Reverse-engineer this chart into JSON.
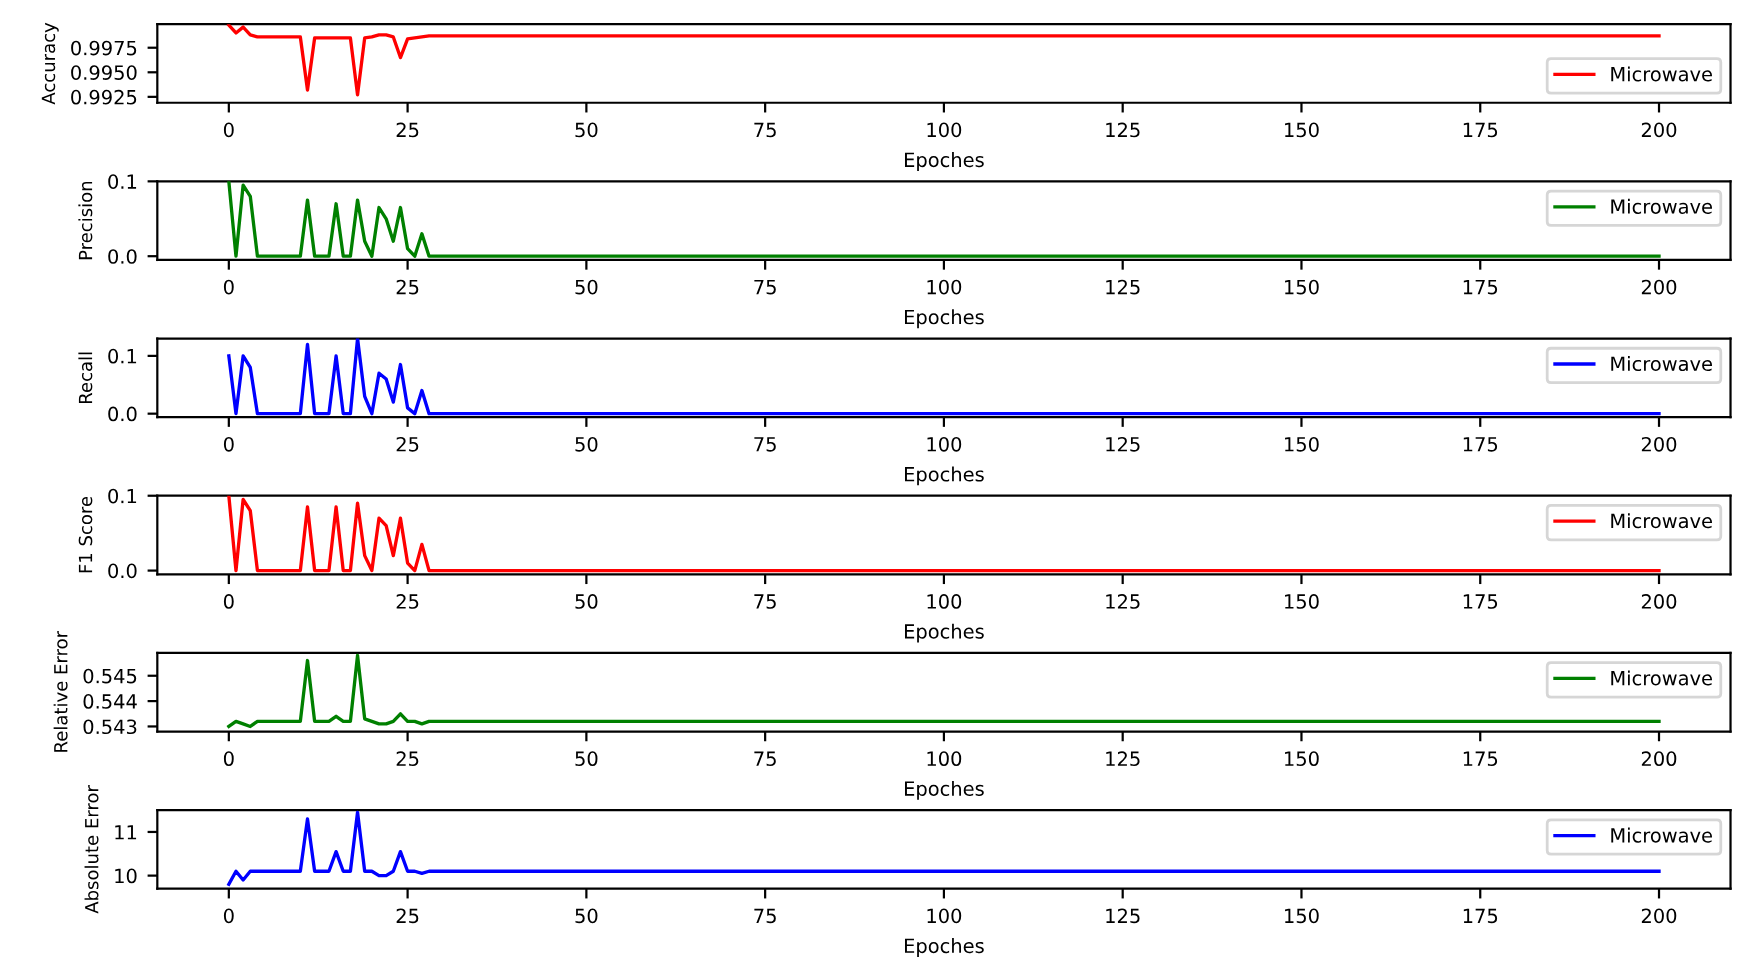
{
  "chart_data": [
    {
      "type": "line",
      "xlabel": "Epoches",
      "ylabel": "Accuracy",
      "xlim": [
        -10,
        210
      ],
      "xticks": [
        0,
        25,
        50,
        75,
        100,
        125,
        150,
        175,
        200
      ],
      "ylim": [
        0.9919,
        0.9999
      ],
      "yticks": [
        {
          "value": 0.9925,
          "label": "0.9925"
        },
        {
          "value": 0.995,
          "label": "0.9950"
        },
        {
          "value": 0.9975,
          "label": "0.9975"
        }
      ],
      "legend": "lower right",
      "series": [
        {
          "name": "Microwave",
          "color": "#ff0000",
          "x": [
            0,
            1,
            2,
            3,
            4,
            5,
            6,
            7,
            8,
            9,
            10,
            11,
            12,
            13,
            14,
            15,
            16,
            17,
            18,
            19,
            20,
            21,
            22,
            23,
            24,
            25,
            26,
            27,
            28,
            200
          ],
          "values": [
            0.9998,
            0.999,
            0.9996,
            0.9988,
            0.9986,
            0.9986,
            0.9986,
            0.9986,
            0.9986,
            0.9986,
            0.9986,
            0.9932,
            0.9985,
            0.9985,
            0.9985,
            0.9985,
            0.9985,
            0.9985,
            0.9927,
            0.9985,
            0.9986,
            0.9988,
            0.9988,
            0.9986,
            0.9965,
            0.9984,
            0.9985,
            0.9986,
            0.9987,
            0.9987
          ]
        }
      ]
    },
    {
      "type": "line",
      "xlabel": "Epoches",
      "ylabel": "Precision",
      "xlim": [
        -10,
        210
      ],
      "xticks": [
        0,
        25,
        50,
        75,
        100,
        125,
        150,
        175,
        200
      ],
      "ylim": [
        -0.005,
        0.1
      ],
      "yticks": [
        {
          "value": 0,
          "label": "0.0"
        },
        0.1
      ],
      "legend": "upper right",
      "series": [
        {
          "name": "Microwave",
          "color": "#008000",
          "x": [
            0,
            1,
            2,
            3,
            4,
            5,
            6,
            7,
            8,
            9,
            10,
            11,
            12,
            13,
            14,
            15,
            16,
            17,
            18,
            19,
            20,
            21,
            22,
            23,
            24,
            25,
            26,
            27,
            28,
            200
          ],
          "values": [
            0.1,
            0,
            0.095,
            0.08,
            0,
            0,
            0,
            0,
            0,
            0,
            0,
            0.075,
            0,
            0,
            0,
            0.07,
            0,
            0,
            0.075,
            0.02,
            0,
            0.065,
            0.05,
            0.02,
            0.065,
            0.01,
            0,
            0.03,
            0,
            0
          ]
        }
      ]
    },
    {
      "type": "line",
      "xlabel": "Epoches",
      "ylabel": "Recall",
      "xlim": [
        -10,
        210
      ],
      "xticks": [
        0,
        25,
        50,
        75,
        100,
        125,
        150,
        175,
        200
      ],
      "ylim": [
        -0.006,
        0.13
      ],
      "yticks": [
        {
          "value": 0,
          "label": "0.0"
        },
        0.1
      ],
      "legend": "upper right",
      "series": [
        {
          "name": "Microwave",
          "color": "#0000ff",
          "x": [
            0,
            1,
            2,
            3,
            4,
            5,
            6,
            7,
            8,
            9,
            10,
            11,
            12,
            13,
            14,
            15,
            16,
            17,
            18,
            19,
            20,
            21,
            22,
            23,
            24,
            25,
            26,
            27,
            28,
            200
          ],
          "values": [
            0.1,
            0,
            0.1,
            0.08,
            0,
            0,
            0,
            0,
            0,
            0,
            0,
            0.12,
            0,
            0,
            0,
            0.1,
            0,
            0,
            0.13,
            0.03,
            0,
            0.07,
            0.06,
            0.02,
            0.085,
            0.01,
            0,
            0.04,
            0,
            0
          ]
        }
      ]
    },
    {
      "type": "line",
      "xlabel": "Epoches",
      "ylabel": "F1 Score",
      "xlim": [
        -10,
        210
      ],
      "xticks": [
        0,
        25,
        50,
        75,
        100,
        125,
        150,
        175,
        200
      ],
      "ylim": [
        -0.005,
        0.1
      ],
      "yticks": [
        {
          "value": 0,
          "label": "0.0"
        },
        0.1
      ],
      "legend": "upper right",
      "series": [
        {
          "name": "Microwave",
          "color": "#ff0000",
          "x": [
            0,
            1,
            2,
            3,
            4,
            5,
            6,
            7,
            8,
            9,
            10,
            11,
            12,
            13,
            14,
            15,
            16,
            17,
            18,
            19,
            20,
            21,
            22,
            23,
            24,
            25,
            26,
            27,
            28,
            200
          ],
          "values": [
            0.1,
            0,
            0.095,
            0.08,
            0,
            0,
            0,
            0,
            0,
            0,
            0,
            0.085,
            0,
            0,
            0,
            0.085,
            0,
            0,
            0.09,
            0.02,
            0,
            0.07,
            0.06,
            0.02,
            0.07,
            0.01,
            0,
            0.035,
            0,
            0
          ]
        }
      ]
    },
    {
      "type": "line",
      "xlabel": "Epoches",
      "ylabel": "Relative Error",
      "xlim": [
        -10,
        210
      ],
      "xticks": [
        0,
        25,
        50,
        75,
        100,
        125,
        150,
        175,
        200
      ],
      "ylim": [
        0.5428,
        0.5459
      ],
      "yticks": [
        0.543,
        0.544,
        0.545
      ],
      "legend": "upper right",
      "series": [
        {
          "name": "Microwave",
          "color": "#008000",
          "x": [
            0,
            1,
            2,
            3,
            4,
            5,
            6,
            7,
            8,
            9,
            10,
            11,
            12,
            13,
            14,
            15,
            16,
            17,
            18,
            19,
            20,
            21,
            22,
            23,
            24,
            25,
            26,
            27,
            28,
            200
          ],
          "values": [
            0.543,
            0.5432,
            0.5431,
            0.543,
            0.5432,
            0.5432,
            0.5432,
            0.5432,
            0.5432,
            0.5432,
            0.5432,
            0.5456,
            0.5432,
            0.5432,
            0.5432,
            0.5434,
            0.5432,
            0.5432,
            0.5458,
            0.5433,
            0.5432,
            0.5431,
            0.5431,
            0.5432,
            0.5435,
            0.5432,
            0.5432,
            0.5431,
            0.5432,
            0.5432
          ]
        }
      ]
    },
    {
      "type": "line",
      "xlabel": "Epoches",
      "ylabel": "Absolute Error",
      "xlim": [
        -10,
        210
      ],
      "xticks": [
        0,
        25,
        50,
        75,
        100,
        125,
        150,
        175,
        200
      ],
      "ylim": [
        9.7,
        11.5
      ],
      "yticks": [
        10,
        11
      ],
      "legend": "upper right",
      "series": [
        {
          "name": "Microwave",
          "color": "#0000ff",
          "x": [
            0,
            1,
            2,
            3,
            4,
            5,
            6,
            7,
            8,
            9,
            10,
            11,
            12,
            13,
            14,
            15,
            16,
            17,
            18,
            19,
            20,
            21,
            22,
            23,
            24,
            25,
            26,
            27,
            28,
            200
          ],
          "values": [
            9.8,
            10.1,
            9.9,
            10.1,
            10.1,
            10.1,
            10.1,
            10.1,
            10.1,
            10.1,
            10.1,
            11.3,
            10.1,
            10.1,
            10.1,
            10.55,
            10.1,
            10.1,
            11.45,
            10.1,
            10.1,
            10.0,
            10.0,
            10.1,
            10.55,
            10.1,
            10.1,
            10.05,
            10.1,
            10.1
          ]
        }
      ]
    }
  ]
}
